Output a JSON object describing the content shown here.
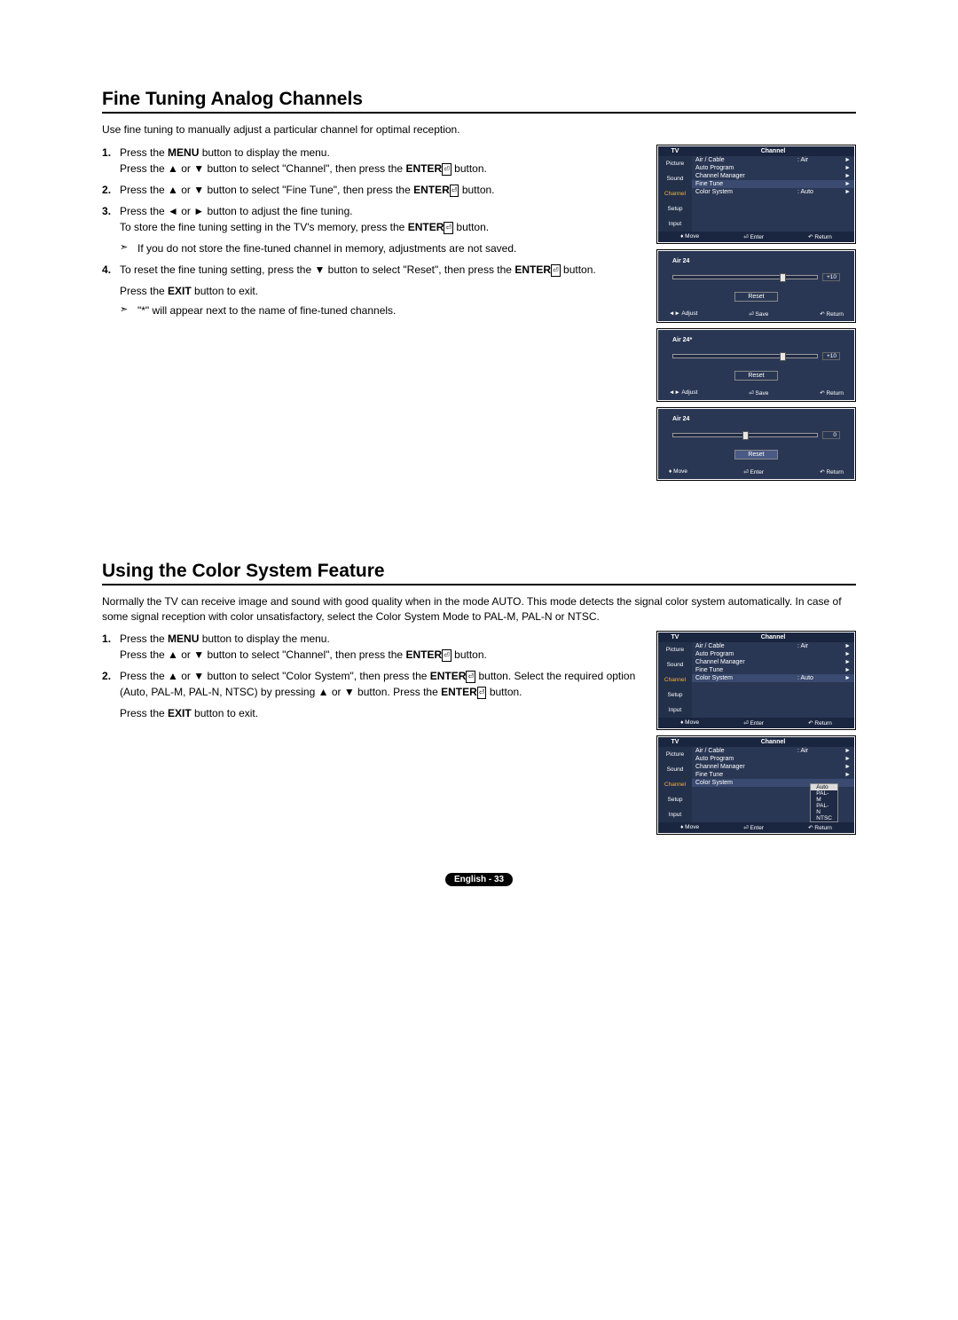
{
  "section1": {
    "title": "Fine Tuning Analog Channels",
    "intro": "Use fine tuning to manually adjust a particular channel for optimal reception.",
    "steps": [
      {
        "parts": [
          "Press the ",
          "MENU",
          " button to display the menu.\nPress the ▲ or ▼ button to select \"Channel\", then press the ",
          "ENTER",
          " button."
        ]
      },
      {
        "parts": [
          "Press the ▲ or ▼ button to select \"Fine Tune\", then press the ",
          "ENTER",
          " button."
        ]
      },
      {
        "parts": [
          "Press the ◄ or ► button to adjust the fine tuning.\nTo store the fine tuning setting in the TV's memory, press the ",
          "ENTER",
          " button."
        ],
        "note": "If you do not store the fine-tuned channel in memory, adjustments are not saved."
      },
      {
        "parts": [
          "To reset the fine tuning setting, press the ▼ button to select \"Reset\", then press the ",
          "ENTER",
          " button."
        ],
        "sub_parts": [
          "Press the ",
          "EXIT",
          " button to exit."
        ],
        "note": "\"*\" will appear next to the name of fine-tuned channels."
      }
    ]
  },
  "section2": {
    "title": "Using the Color System Feature",
    "intro": "Normally the TV can receive image and sound with good quality when in the mode AUTO. This mode detects the signal color system automatically. In case of some signal reception with color unsatisfactory, select the Color System Mode to PAL-M, PAL-N or NTSC.",
    "steps": [
      {
        "parts": [
          "Press the ",
          "MENU",
          " button to display the menu.\nPress the ▲ or ▼ button to select \"Channel\", then press the ",
          "ENTER",
          " button."
        ]
      },
      {
        "parts": [
          "Press the ▲ or ▼ button to select \"Color System\", then press the ",
          "ENTER",
          " button. Select the required option (Auto, PAL-M, PAL-N, NTSC) by pressing ▲ or ▼ button. Press the ",
          "ENTER",
          " button."
        ],
        "sub_parts": [
          "Press the ",
          "EXIT",
          " button to exit."
        ]
      }
    ]
  },
  "tv_menu": {
    "header_left": "TV",
    "header_right": "Channel",
    "sidebar": [
      "Picture",
      "Sound",
      "Channel",
      "Setup",
      "Input"
    ],
    "rows": [
      {
        "label": "Air / Cable",
        "val": ": Air"
      },
      {
        "label": "Auto Program",
        "val": ""
      },
      {
        "label": "Channel Manager",
        "val": ""
      },
      {
        "label": "Fine Tune",
        "val": ""
      },
      {
        "label": "Color System",
        "val": ": Auto"
      }
    ],
    "foot": {
      "move": "Move",
      "enter": "Enter",
      "return": "Return"
    }
  },
  "cs_options": [
    "Auto",
    "PAL-M",
    "PAL-N",
    "NTSC"
  ],
  "ft1": {
    "title": "Air 24",
    "value": "+10",
    "thumb_pct": 74,
    "reset": "Reset",
    "foot": [
      "Adjust",
      "Save",
      "Return"
    ]
  },
  "ft2": {
    "title": "Air 24*",
    "value": "+10",
    "thumb_pct": 74,
    "reset": "Reset",
    "foot": [
      "Adjust",
      "Save",
      "Return"
    ]
  },
  "ft3": {
    "title": "Air 24",
    "value": "0",
    "thumb_pct": 48,
    "reset": "Reset",
    "foot": [
      "Move",
      "Enter",
      "Return"
    ]
  },
  "footer": "English - 33"
}
